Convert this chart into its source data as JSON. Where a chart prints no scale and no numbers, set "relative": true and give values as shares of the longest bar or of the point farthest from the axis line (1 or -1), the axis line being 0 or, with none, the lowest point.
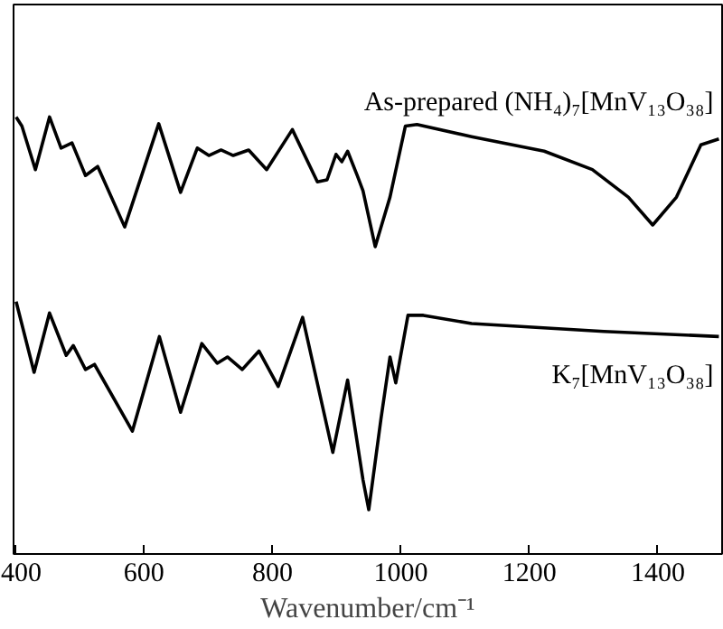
{
  "chart_data": {
    "type": "line",
    "relative": true,
    "xlabel": "Wavenumber/cm⁻¹",
    "xlim": [
      397,
      1500
    ],
    "xticks": [
      400,
      600,
      800,
      1000,
      1200,
      1400
    ],
    "grid": false,
    "marker": "none",
    "line_style": "solid",
    "series": [
      {
        "name": "As-prepared (NH₄)₇[MnV₁₃O₃₈]",
        "color": "#000000",
        "x": [
          401,
          410,
          431,
          453,
          471,
          488,
          509,
          528,
          570,
          623,
          657,
          683,
          701,
          720,
          739,
          763,
          791,
          831,
          870,
          885,
          899,
          908,
          917,
          932,
          941,
          960,
          983,
          1007,
          1025,
          1110,
          1223,
          1298,
          1354,
          1392,
          1429,
          1467,
          1495
        ],
        "values": [
          1.0,
          0.977,
          0.866,
          1.0,
          0.921,
          0.934,
          0.851,
          0.874,
          0.72,
          0.983,
          0.808,
          0.921,
          0.902,
          0.916,
          0.902,
          0.916,
          0.866,
          0.968,
          0.835,
          0.84,
          0.905,
          0.886,
          0.913,
          0.851,
          0.812,
          0.67,
          0.796,
          0.977,
          0.981,
          0.95,
          0.913,
          0.866,
          0.796,
          0.725,
          0.796,
          0.929,
          0.944
        ]
      },
      {
        "name": "K₇[MnV₁₃O₃₈]",
        "color": "#000000",
        "x": [
          401,
          429,
          453,
          479,
          490,
          509,
          523,
          582,
          624,
          657,
          690,
          714,
          730,
          753,
          779,
          809,
          847,
          894,
          917,
          941,
          950,
          969,
          983,
          992,
          1011,
          1035,
          1110,
          1316,
          1495
        ],
        "values": [
          0.53,
          0.35,
          0.501,
          0.393,
          0.418,
          0.357,
          0.37,
          0.2,
          0.441,
          0.248,
          0.423,
          0.373,
          0.389,
          0.357,
          0.404,
          0.314,
          0.49,
          0.146,
          0.33,
          0.076,
          0.0,
          0.232,
          0.389,
          0.323,
          0.495,
          0.495,
          0.474,
          0.454,
          0.441
        ]
      }
    ]
  }
}
